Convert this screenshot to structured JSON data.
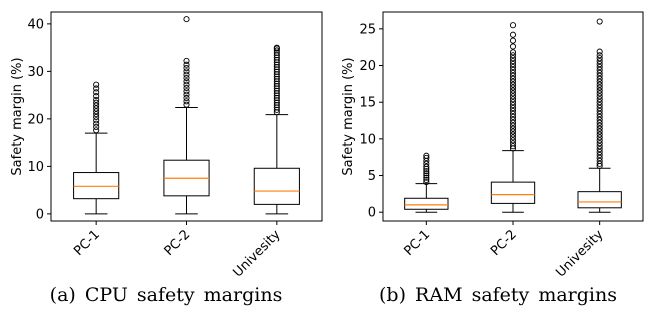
{
  "chart_data": [
    {
      "type": "box",
      "caption": "(a) CPU safety margins",
      "ylabel": "Safety margin (%)",
      "xlabel": "",
      "categories": [
        "PC-1",
        "PC-2",
        "Univesity"
      ],
      "ylim": [
        -1.5,
        42.5
      ],
      "yticks": [
        0,
        10,
        20,
        30,
        40
      ],
      "boxes": [
        {
          "whisker_low": 0,
          "q1": 3.2,
          "median": 5.8,
          "q3": 8.7,
          "whisker_high": 17.0,
          "outliers": [
            17.6,
            18.3,
            19.0,
            19.7,
            20.4,
            21.0,
            21.6,
            22.2,
            22.8,
            23.4,
            24.0,
            24.8,
            25.6,
            26.4,
            27.2
          ]
        },
        {
          "whisker_low": 0,
          "q1": 3.8,
          "median": 7.5,
          "q3": 11.3,
          "whisker_high": 22.4,
          "outliers": [
            23.0,
            23.7,
            24.4,
            25.1,
            25.8,
            26.5,
            27.2,
            27.9,
            28.6,
            29.3,
            30.0,
            30.7,
            31.4,
            32.2,
            41.0
          ]
        },
        {
          "whisker_low": 0,
          "q1": 2.0,
          "median": 4.8,
          "q3": 9.6,
          "whisker_high": 20.9,
          "outliers": [
            21.4,
            21.9,
            22.4,
            22.9,
            23.4,
            23.9,
            24.4,
            24.9,
            25.4,
            25.9,
            26.4,
            26.9,
            27.4,
            27.9,
            28.4,
            28.9,
            29.4,
            29.9,
            30.4,
            30.9,
            31.4,
            31.9,
            32.4,
            32.9,
            33.4,
            33.9,
            34.4,
            34.8,
            35.0
          ]
        }
      ]
    },
    {
      "type": "box",
      "caption": "(b) RAM safety margins",
      "ylabel": "Safety margin (%)",
      "xlabel": "",
      "categories": [
        "PC-1",
        "PC-2",
        "Univesity"
      ],
      "ylim": [
        -1.2,
        27.3
      ],
      "yticks": [
        0,
        5,
        10,
        15,
        20,
        25
      ],
      "boxes": [
        {
          "whisker_low": 0,
          "q1": 0.4,
          "median": 1.0,
          "q3": 1.9,
          "whisker_high": 3.9,
          "outliers": [
            4.1,
            4.4,
            4.7,
            5.0,
            5.3,
            5.6,
            5.9,
            6.2,
            6.6,
            7.0,
            7.4,
            7.7
          ]
        },
        {
          "whisker_low": 0,
          "q1": 1.2,
          "median": 2.4,
          "q3": 4.1,
          "whisker_high": 8.4,
          "outliers": [
            8.7,
            9.0,
            9.4,
            9.8,
            10.2,
            10.6,
            11.0,
            11.4,
            11.8,
            12.2,
            12.6,
            13.0,
            13.4,
            13.8,
            14.2,
            14.6,
            15.0,
            15.4,
            15.8,
            16.2,
            16.6,
            17.0,
            17.4,
            17.8,
            18.2,
            18.6,
            19.0,
            19.4,
            19.8,
            20.2,
            20.6,
            21.0,
            21.4,
            21.8,
            22.6,
            23.4,
            24.2,
            25.5
          ]
        },
        {
          "whisker_low": 0,
          "q1": 0.6,
          "median": 1.4,
          "q3": 2.8,
          "whisker_high": 6.0,
          "outliers": [
            6.3,
            6.6,
            7.0,
            7.4,
            7.8,
            8.2,
            8.6,
            9.0,
            9.4,
            9.8,
            10.2,
            10.6,
            11.0,
            11.4,
            11.8,
            12.2,
            12.6,
            13.0,
            13.4,
            13.8,
            14.2,
            14.6,
            15.0,
            15.4,
            15.8,
            16.2,
            16.6,
            17.0,
            17.4,
            17.8,
            18.2,
            18.6,
            19.0,
            19.4,
            19.8,
            20.2,
            20.6,
            21.0,
            21.4,
            21.9,
            26.0
          ]
        }
      ]
    }
  ],
  "colors": {
    "median": "#ff7f0e",
    "box": "#000000",
    "outlier": "#000000"
  }
}
